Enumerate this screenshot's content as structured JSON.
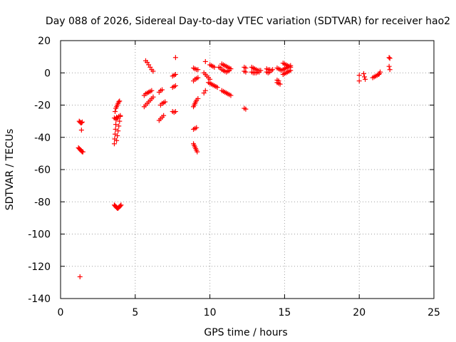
{
  "chart_data": {
    "type": "scatter",
    "title": "Day 088 of 2026, Sidereal Day-to-day VTEC variation (SDTVAR) for receiver hao2",
    "xlabel": "GPS time / hours",
    "ylabel": "SDTVAR / TECUs",
    "xlim": [
      0,
      25
    ],
    "ylim": [
      -140,
      20
    ],
    "xticks": [
      0,
      5,
      10,
      15,
      20,
      25
    ],
    "yticks": [
      -140,
      -120,
      -100,
      -80,
      -60,
      -40,
      -20,
      0,
      20
    ],
    "grid": true,
    "marker": "+",
    "color": "#ff0000",
    "series": [
      {
        "name": "SDTVAR",
        "points": [
          [
            1.3,
            -126.5
          ],
          [
            1.4,
            -35.5
          ],
          [
            1.25,
            -30
          ],
          [
            1.3,
            -30.5
          ],
          [
            1.35,
            -31
          ],
          [
            1.4,
            -31
          ],
          [
            1.45,
            -30.5
          ],
          [
            1.2,
            -46.5
          ],
          [
            1.25,
            -47
          ],
          [
            1.3,
            -47.5
          ],
          [
            1.35,
            -48
          ],
          [
            1.4,
            -48.5
          ],
          [
            1.45,
            -49
          ],
          [
            1.5,
            -49
          ],
          [
            3.6,
            -44
          ],
          [
            3.62,
            -41
          ],
          [
            3.65,
            -38
          ],
          [
            3.68,
            -35
          ],
          [
            3.7,
            -32
          ],
          [
            3.72,
            -29
          ],
          [
            3.75,
            -27.5
          ],
          [
            3.65,
            -24
          ],
          [
            3.7,
            -22
          ],
          [
            3.75,
            -21
          ],
          [
            3.8,
            -20
          ],
          [
            3.85,
            -19
          ],
          [
            3.9,
            -18
          ],
          [
            3.95,
            -17.5
          ],
          [
            3.6,
            -28
          ],
          [
            3.7,
            -28.5
          ],
          [
            3.8,
            -28
          ],
          [
            3.9,
            -27
          ],
          [
            4.0,
            -26.5
          ],
          [
            3.75,
            -42
          ],
          [
            3.8,
            -39
          ],
          [
            3.85,
            -36
          ],
          [
            3.9,
            -33
          ],
          [
            3.95,
            -30
          ],
          [
            4.0,
            -27
          ],
          [
            3.6,
            -82
          ],
          [
            3.65,
            -82.5
          ],
          [
            3.7,
            -83
          ],
          [
            3.75,
            -83.5
          ],
          [
            3.8,
            -84
          ],
          [
            3.85,
            -84
          ],
          [
            3.9,
            -83.5
          ],
          [
            3.95,
            -83
          ],
          [
            4.0,
            -82.5
          ],
          [
            4.05,
            -82
          ],
          [
            5.7,
            7.5
          ],
          [
            5.8,
            6.5
          ],
          [
            5.9,
            5
          ],
          [
            6.0,
            3.5
          ],
          [
            6.1,
            2
          ],
          [
            6.2,
            1
          ],
          [
            5.6,
            -14
          ],
          [
            5.7,
            -13
          ],
          [
            5.8,
            -12.5
          ],
          [
            5.9,
            -12
          ],
          [
            6.0,
            -11.5
          ],
          [
            6.1,
            -11
          ],
          [
            5.6,
            -21
          ],
          [
            5.7,
            -20
          ],
          [
            5.8,
            -19
          ],
          [
            5.9,
            -18
          ],
          [
            6.0,
            -17
          ],
          [
            6.1,
            -16
          ],
          [
            6.2,
            -15
          ],
          [
            6.6,
            -29.5
          ],
          [
            6.7,
            -28.5
          ],
          [
            6.8,
            -27.5
          ],
          [
            6.9,
            -26.5
          ],
          [
            6.7,
            -20
          ],
          [
            6.8,
            -19
          ],
          [
            6.9,
            -18.5
          ],
          [
            7.0,
            -18
          ],
          [
            6.6,
            -12
          ],
          [
            6.7,
            -11
          ],
          [
            6.8,
            -10.5
          ],
          [
            7.5,
            -24
          ],
          [
            7.6,
            -24.5
          ],
          [
            7.7,
            -24
          ],
          [
            7.5,
            -9
          ],
          [
            7.6,
            -8.5
          ],
          [
            7.7,
            -8
          ],
          [
            7.5,
            -2
          ],
          [
            7.6,
            -1.5
          ],
          [
            7.7,
            -1
          ],
          [
            7.7,
            9.5
          ],
          [
            8.9,
            -44
          ],
          [
            8.95,
            -45
          ],
          [
            9.0,
            -46
          ],
          [
            9.05,
            -47
          ],
          [
            9.1,
            -48
          ],
          [
            9.15,
            -49
          ],
          [
            8.9,
            -35
          ],
          [
            9.0,
            -34.5
          ],
          [
            9.1,
            -34
          ],
          [
            8.9,
            -21
          ],
          [
            8.95,
            -20
          ],
          [
            9.0,
            -19
          ],
          [
            9.05,
            -18
          ],
          [
            9.1,
            -17
          ],
          [
            9.2,
            -16
          ],
          [
            8.9,
            -5
          ],
          [
            9.0,
            -4
          ],
          [
            9.1,
            -3.5
          ],
          [
            9.2,
            -3
          ],
          [
            8.9,
            3
          ],
          [
            9.0,
            2.5
          ],
          [
            9.1,
            2
          ],
          [
            9.2,
            2
          ],
          [
            9.6,
            -12.5
          ],
          [
            9.7,
            -11
          ],
          [
            9.7,
            7
          ],
          [
            9.6,
            0
          ],
          [
            9.7,
            -1
          ],
          [
            9.8,
            -2
          ],
          [
            9.9,
            -3
          ],
          [
            10.0,
            -4
          ],
          [
            10.0,
            5
          ],
          [
            10.1,
            4.5
          ],
          [
            10.2,
            4
          ],
          [
            10.3,
            3.5
          ],
          [
            9.9,
            -6
          ],
          [
            10.0,
            -6.5
          ],
          [
            10.1,
            -7
          ],
          [
            10.2,
            -7.5
          ],
          [
            10.3,
            -8
          ],
          [
            10.4,
            -8.5
          ],
          [
            10.5,
            -9
          ],
          [
            10.6,
            3.5
          ],
          [
            10.7,
            3
          ],
          [
            10.8,
            5.5
          ],
          [
            10.9,
            5
          ],
          [
            11.0,
            4.5
          ],
          [
            11.1,
            4
          ],
          [
            11.2,
            3.5
          ],
          [
            11.3,
            3
          ],
          [
            11.4,
            2.5
          ],
          [
            10.8,
            2
          ],
          [
            10.9,
            1.5
          ],
          [
            11.0,
            1
          ],
          [
            11.1,
            0.5
          ],
          [
            11.2,
            1
          ],
          [
            11.3,
            1.5
          ],
          [
            10.8,
            -11
          ],
          [
            10.9,
            -11.5
          ],
          [
            11.0,
            -12
          ],
          [
            11.1,
            -12.5
          ],
          [
            11.2,
            -13
          ],
          [
            11.3,
            -13.5
          ],
          [
            11.4,
            -14
          ],
          [
            12.3,
            -22
          ],
          [
            12.4,
            -22.5
          ],
          [
            12.3,
            3.5
          ],
          [
            12.4,
            3
          ],
          [
            12.3,
            1
          ],
          [
            12.4,
            0.5
          ],
          [
            12.8,
            3.5
          ],
          [
            12.9,
            3
          ],
          [
            13.0,
            2.5
          ],
          [
            13.1,
            2
          ],
          [
            13.2,
            1.5
          ],
          [
            13.3,
            1.5
          ],
          [
            13.4,
            1.5
          ],
          [
            12.8,
            0.5
          ],
          [
            12.9,
            0
          ],
          [
            13.0,
            0
          ],
          [
            13.1,
            0
          ],
          [
            13.2,
            0.5
          ],
          [
            13.3,
            0.5
          ],
          [
            13.8,
            2.5
          ],
          [
            13.9,
            2
          ],
          [
            14.0,
            2
          ],
          [
            14.1,
            1.5
          ],
          [
            14.2,
            2
          ],
          [
            13.8,
            0.5
          ],
          [
            13.9,
            0
          ],
          [
            14.0,
            0.5
          ],
          [
            14.5,
            -6
          ],
          [
            14.6,
            -6.5
          ],
          [
            14.7,
            -7
          ],
          [
            14.5,
            -4.5
          ],
          [
            14.6,
            -5
          ],
          [
            14.5,
            3
          ],
          [
            14.6,
            2.5
          ],
          [
            14.7,
            2
          ],
          [
            14.8,
            1.5
          ],
          [
            14.9,
            2
          ],
          [
            15.0,
            2.5
          ],
          [
            15.1,
            3
          ],
          [
            15.2,
            3.5
          ],
          [
            15.3,
            4
          ],
          [
            15.4,
            4.5
          ],
          [
            14.9,
            6
          ],
          [
            15.0,
            5.5
          ],
          [
            15.1,
            5
          ],
          [
            15.2,
            4.5
          ],
          [
            15.3,
            4
          ],
          [
            15.4,
            3.5
          ],
          [
            14.9,
            -1
          ],
          [
            15.0,
            -0.5
          ],
          [
            15.1,
            0
          ],
          [
            15.2,
            0.5
          ],
          [
            15.3,
            1
          ],
          [
            15.4,
            1.5
          ],
          [
            20.0,
            -1.5
          ],
          [
            20.0,
            -5
          ],
          [
            20.3,
            -0.5
          ],
          [
            20.35,
            -2.5
          ],
          [
            20.4,
            -4
          ],
          [
            20.9,
            -3
          ],
          [
            21.0,
            -2.5
          ],
          [
            21.1,
            -2
          ],
          [
            21.2,
            -1.5
          ],
          [
            21.3,
            -1
          ],
          [
            21.35,
            -0.5
          ],
          [
            21.4,
            0.5
          ],
          [
            22.0,
            9.5
          ],
          [
            22.05,
            9
          ],
          [
            22.0,
            4
          ],
          [
            22.05,
            2
          ]
        ]
      }
    ]
  }
}
